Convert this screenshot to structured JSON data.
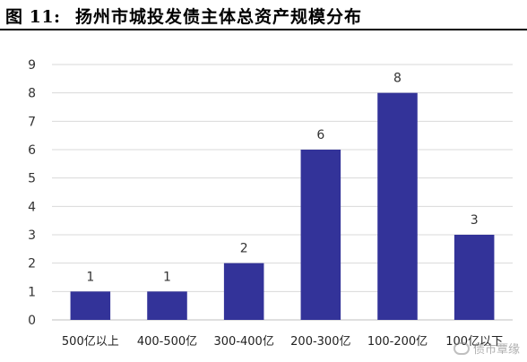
{
  "header": {
    "figure_label": "图 11:",
    "title": "扬州市城投发债主体总资产规模分布"
  },
  "chart_data": {
    "type": "bar",
    "categories": [
      "500亿以上",
      "400-500亿",
      "300-400亿",
      "200-300亿",
      "100-200亿",
      "100亿以下"
    ],
    "values": [
      1,
      1,
      2,
      6,
      8,
      3
    ],
    "ylim": [
      0,
      9
    ],
    "yticks": [
      0,
      1,
      2,
      3,
      4,
      5,
      6,
      7,
      8,
      9
    ],
    "bar_color": "#333399",
    "grid": true,
    "legend": false
  },
  "watermark": {
    "text": "债市覃缘"
  }
}
